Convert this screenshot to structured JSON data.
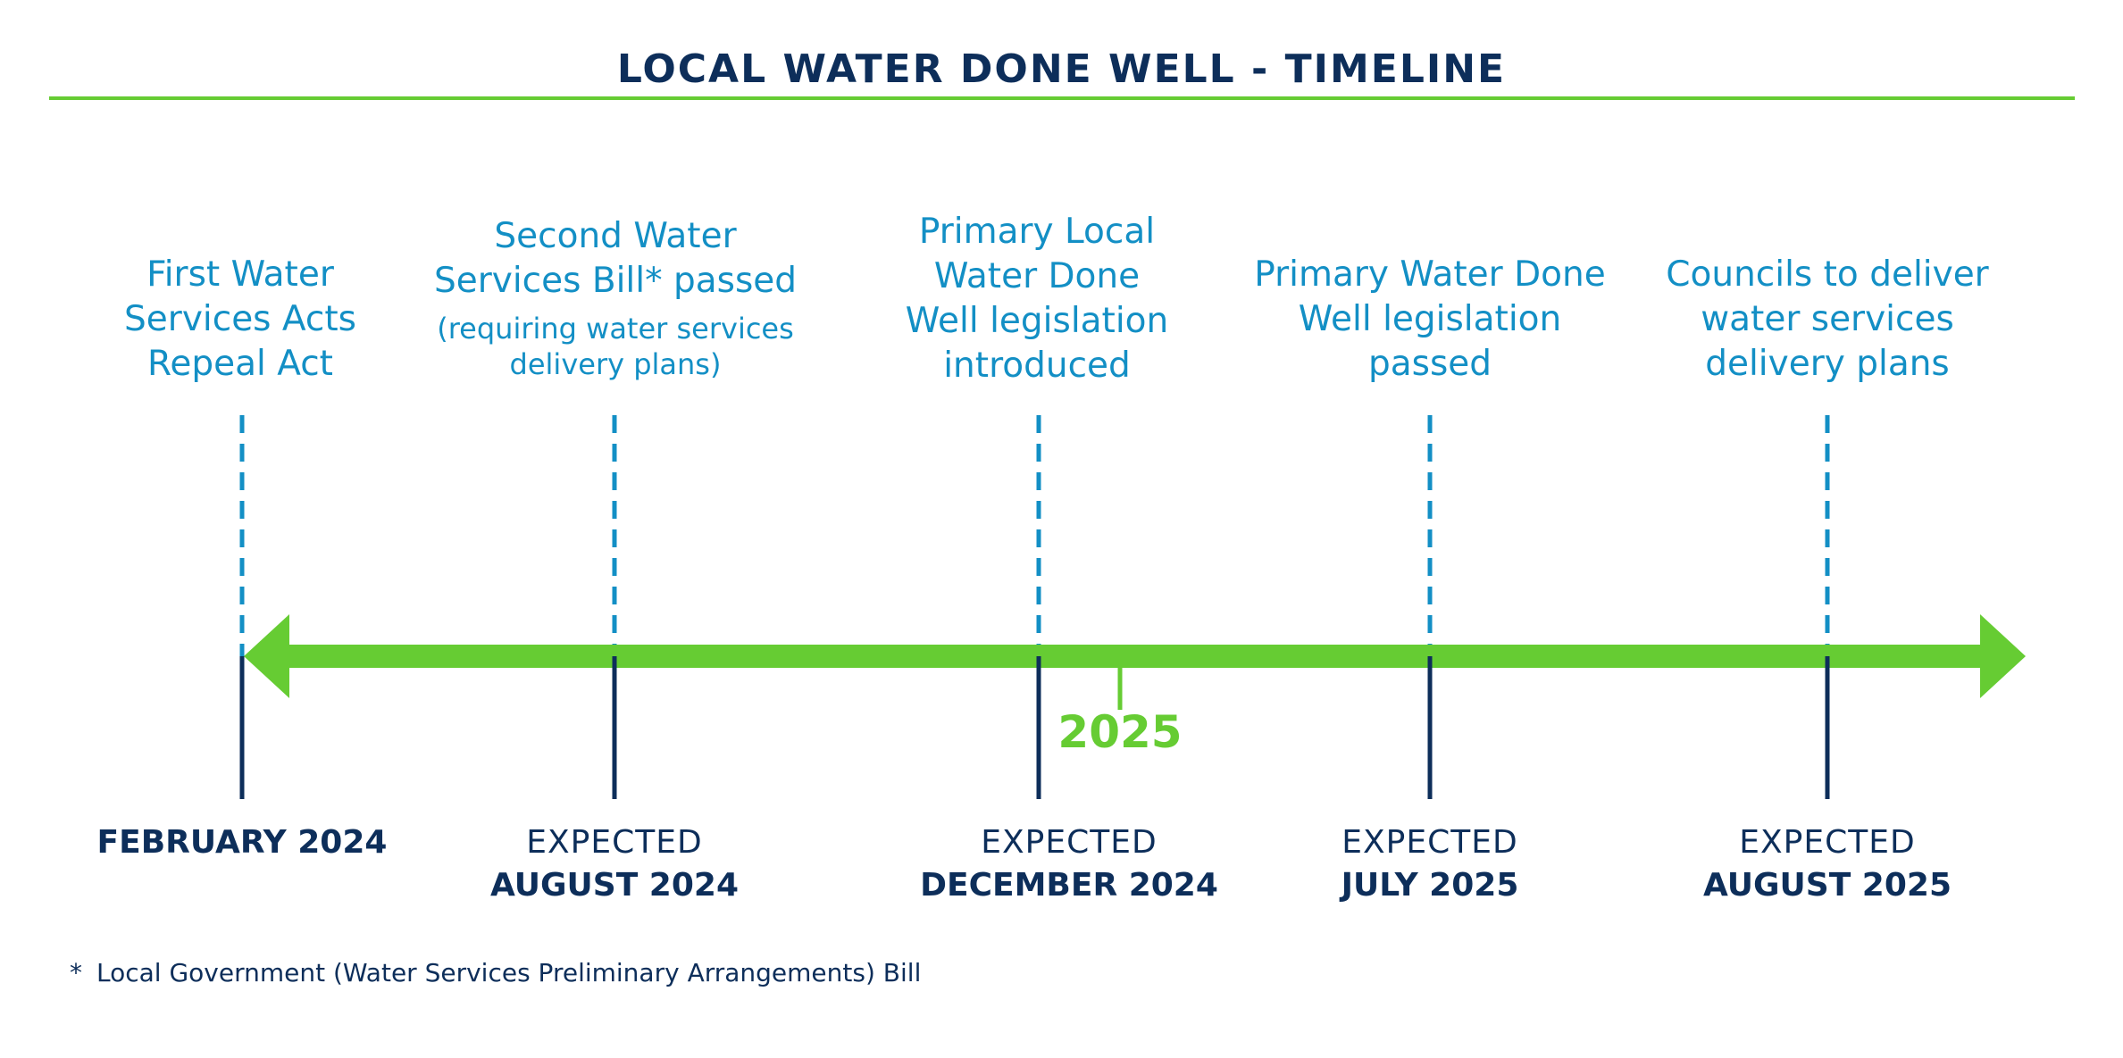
{
  "title": "LOCAL WATER DONE WELL - TIMELINE",
  "colors": {
    "navy": "#0d2e5a",
    "blue": "#138fc5",
    "green": "#66cc33"
  },
  "year_marker": "2025",
  "milestones": [
    {
      "event_lines": [
        "First Water",
        "Services Acts",
        "Repeal Act"
      ],
      "note": "",
      "expected": "",
      "date": "FEBRUARY 2024"
    },
    {
      "event_lines": [
        "Second Water",
        "Services Bill* passed"
      ],
      "note_lines": [
        "(requiring water services",
        "delivery plans)"
      ],
      "expected": "EXPECTED",
      "date": "AUGUST 2024"
    },
    {
      "event_lines": [
        "Primary Local",
        "Water Done",
        "Well legislation",
        "introduced"
      ],
      "note": "",
      "expected": "EXPECTED",
      "date": "DECEMBER 2024"
    },
    {
      "event_lines": [
        "Primary Water Done",
        "Well legislation",
        "passed"
      ],
      "note": "",
      "expected": "EXPECTED",
      "date": "JULY 2025"
    },
    {
      "event_lines": [
        "Councils to deliver",
        "water services",
        "delivery plans"
      ],
      "note": "",
      "expected": "EXPECTED",
      "date": "AUGUST 2025"
    }
  ],
  "footnote": {
    "mark": "*",
    "text": "Local Government (Water Services Preliminary Arrangements) Bill"
  }
}
